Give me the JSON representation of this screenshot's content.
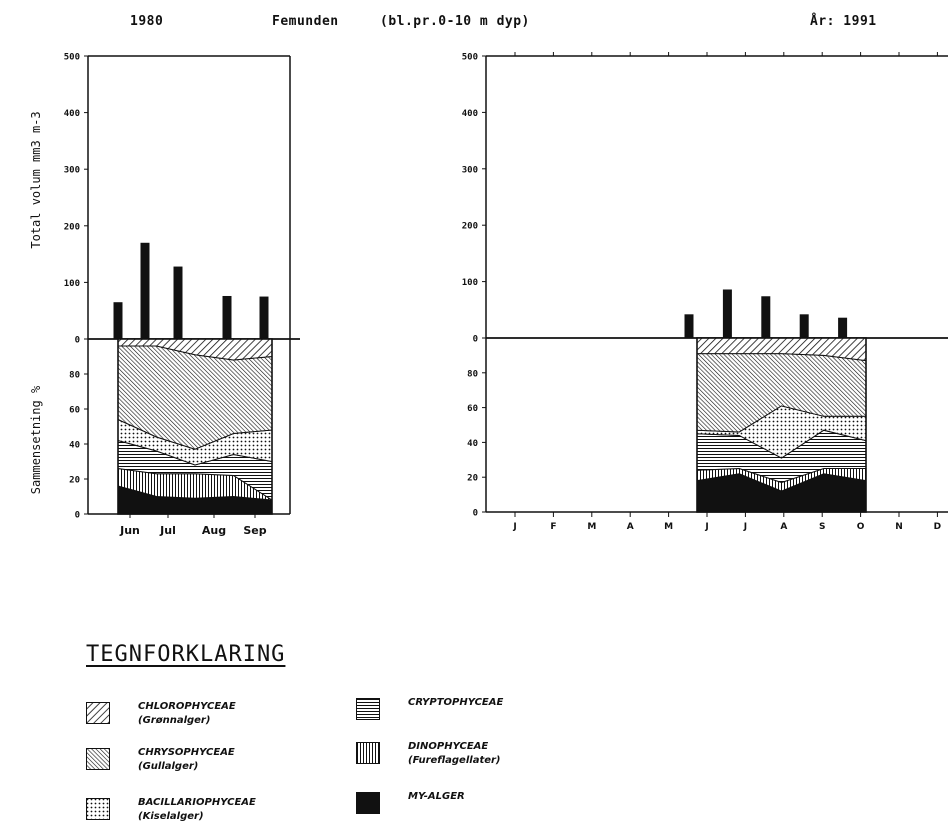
{
  "header": {
    "left_year": "1980",
    "lake": "Femunden",
    "depth": "(bl.pr.0-10 m dyp)",
    "right_year": "År: 1991"
  },
  "colors": {
    "ink": "#111111",
    "background": "#ffffff"
  },
  "chart_data": [
    {
      "type": "bar",
      "title": "1980",
      "ylabel": "Total volum mm3 m-3",
      "ylim": [
        0,
        500
      ],
      "yticks": [
        "0",
        "100",
        "200",
        "300",
        "400",
        "500"
      ],
      "categories": [
        "Jun",
        "Jun",
        "Jul",
        "Aug",
        "Sep"
      ],
      "xticklabels": [
        "Jun",
        "Jul",
        "Aug",
        "Sep"
      ],
      "values": [
        65,
        170,
        128,
        76,
        75
      ]
    },
    {
      "type": "area",
      "title": "1980",
      "ylabel": "Sammensetning %",
      "ylim": [
        0,
        100
      ],
      "yticks": [
        "0",
        "20",
        "40",
        "60",
        "80"
      ],
      "x": [
        "Jun",
        "Jun",
        "Jul",
        "Aug",
        "Sep"
      ],
      "series": [
        {
          "name": "MY-ALGER",
          "values": [
            16,
            10,
            9,
            10,
            8
          ]
        },
        {
          "name": "DINOPHYCEAE",
          "values": [
            10,
            13,
            14,
            12,
            0
          ]
        },
        {
          "name": "CRYPTOPHYCEAE",
          "values": [
            16,
            13,
            5,
            12,
            22
          ]
        },
        {
          "name": "BACILLARIOPHYCEAE",
          "values": [
            12,
            8,
            9,
            12,
            18
          ]
        },
        {
          "name": "CHRYSOPHYCEAE",
          "values": [
            42,
            52,
            54,
            42,
            42
          ]
        },
        {
          "name": "CHLOROPHYCEAE",
          "values": [
            4,
            4,
            9,
            12,
            10
          ]
        }
      ]
    },
    {
      "type": "bar",
      "title": "År: 1991",
      "ylim": [
        0,
        500
      ],
      "yticks": [
        "0",
        "100",
        "200",
        "300",
        "400",
        "500"
      ],
      "months": [
        "J",
        "F",
        "M",
        "A",
        "M",
        "J",
        "J",
        "A",
        "S",
        "O",
        "N",
        "D"
      ],
      "categories": [
        "J",
        "J",
        "A",
        "S",
        "O"
      ],
      "values": [
        42,
        86,
        74,
        42,
        36
      ]
    },
    {
      "type": "area",
      "title": "År: 1991",
      "ylim": [
        0,
        100
      ],
      "yticks": [
        "0",
        "20",
        "40",
        "60",
        "80"
      ],
      "x": [
        "J",
        "J",
        "A",
        "S",
        "O"
      ],
      "series": [
        {
          "name": "MY-ALGER",
          "values": [
            18,
            22,
            12,
            22,
            18
          ]
        },
        {
          "name": "DINOPHYCEAE",
          "values": [
            6,
            3,
            5,
            3,
            7
          ]
        },
        {
          "name": "CRYPTOPHYCEAE",
          "values": [
            21,
            19,
            14,
            22,
            16
          ]
        },
        {
          "name": "BACILLARIOPHYCEAE",
          "values": [
            2,
            2,
            30,
            8,
            14
          ]
        },
        {
          "name": "CHRYSOPHYCEAE",
          "values": [
            44,
            45,
            30,
            35,
            32
          ]
        },
        {
          "name": "CHLOROPHYCEAE",
          "values": [
            9,
            9,
            9,
            10,
            13
          ]
        }
      ]
    }
  ],
  "legend": {
    "title": "TEGNFORKLARING",
    "items": [
      {
        "key": "chlorophyceae",
        "name": "CHLOROPHYCEAE",
        "sub": "(Grønnalger)"
      },
      {
        "key": "chrysophyceae",
        "name": "CHRYSOPHYCEAE",
        "sub": "(Gullalger)"
      },
      {
        "key": "bacillariophyceae",
        "name": "BACILLARIOPHYCEAE",
        "sub": "(Kiselalger)"
      },
      {
        "key": "cryptophyceae",
        "name": "CRYPTOPHYCEAE",
        "sub": ""
      },
      {
        "key": "dinophyceae",
        "name": "DINOPHYCEAE",
        "sub": "(Fureflagellater)"
      },
      {
        "key": "my-alger",
        "name": "MY-ALGER",
        "sub": ""
      }
    ]
  }
}
